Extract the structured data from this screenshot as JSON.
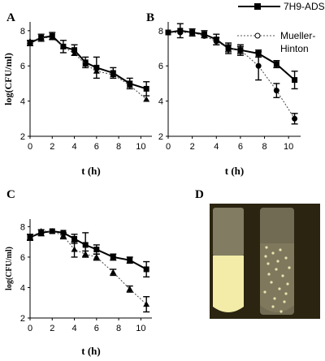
{
  "figure": {
    "panel_labels": [
      "A",
      "B",
      "C",
      "D"
    ],
    "legend": [
      {
        "label": "7H9-ADS",
        "style": "solid",
        "marker": "square-filled",
        "color": "#000000"
      },
      {
        "label": "Mueller-\nHinton",
        "style": "dotted",
        "marker": "circle-open",
        "color": "#555555"
      }
    ],
    "photo_panel": {
      "label": "D",
      "colors": {
        "background": "#2b2410",
        "broth": "#f2eca8",
        "glass": "#c9c4a6",
        "clear_tube": "#8a8466"
      }
    }
  },
  "chart_data": [
    {
      "panel": "A",
      "type": "line",
      "xlabel": "t (h)",
      "ylabel": "log(CFU/ml)",
      "xlim": [
        0,
        11
      ],
      "ylim": [
        2,
        8.5
      ],
      "xticks": [
        "0",
        "2",
        "4",
        "6",
        "8",
        "10"
      ],
      "yticks": [
        "2",
        "4",
        "6",
        "8"
      ],
      "series": [
        {
          "name": "7H9-ADS",
          "style": "solid",
          "marker": "square",
          "x": [
            0,
            1,
            2,
            3,
            4,
            5,
            6,
            7.5,
            9,
            10.5
          ],
          "y": [
            7.3,
            7.6,
            7.7,
            7.1,
            6.9,
            6.2,
            5.9,
            5.6,
            5.0,
            4.7
          ],
          "err": [
            0.15,
            0.2,
            0.2,
            0.35,
            0.3,
            0.3,
            0.6,
            0.3,
            0.3,
            0.4
          ]
        },
        {
          "name": "Mueller-Hinton",
          "style": "dotted",
          "marker": "triangle",
          "x": [
            0,
            1,
            2,
            3,
            4,
            5,
            6,
            7.5,
            9,
            10.5
          ],
          "y": [
            7.4,
            7.6,
            7.6,
            7.1,
            6.7,
            6.1,
            5.7,
            5.5,
            4.9,
            4.1
          ],
          "err": [
            0.1,
            0.1,
            0.1,
            0.1,
            0.1,
            0.1,
            0.1,
            0.1,
            0.1,
            0.1
          ]
        }
      ]
    },
    {
      "panel": "B",
      "type": "line",
      "xlabel": "t (h)",
      "ylabel": "",
      "xlim": [
        0,
        11
      ],
      "ylim": [
        2,
        8.5
      ],
      "xticks": [
        "0",
        "2",
        "4",
        "6",
        "8",
        "10"
      ],
      "yticks": [
        "2",
        "4",
        "6",
        "8"
      ],
      "series": [
        {
          "name": "7H9-ADS",
          "style": "solid",
          "marker": "square",
          "x": [
            0,
            1,
            2,
            3,
            4,
            5,
            6,
            7.5,
            9,
            10.5
          ],
          "y": [
            7.9,
            8.0,
            7.9,
            7.8,
            7.5,
            7.0,
            6.9,
            6.7,
            6.1,
            5.2
          ],
          "err": [
            0.1,
            0.4,
            0.2,
            0.2,
            0.3,
            0.3,
            0.3,
            0.2,
            0.2,
            0.5
          ]
        },
        {
          "name": "Mueller-Hinton",
          "style": "dotted",
          "marker": "circle",
          "x": [
            0,
            1,
            2,
            3,
            4,
            5,
            6,
            7.5,
            9,
            10.5
          ],
          "y": [
            7.9,
            7.9,
            7.9,
            7.7,
            7.4,
            7.0,
            6.9,
            6.0,
            4.6,
            3.0
          ],
          "err": [
            0.1,
            0.1,
            0.1,
            0.1,
            0.2,
            0.2,
            0.2,
            0.8,
            0.4,
            0.3
          ]
        }
      ]
    },
    {
      "panel": "C",
      "type": "line",
      "xlabel": "t (h)",
      "ylabel": "log(CFU/ml)",
      "xlim": [
        0,
        11
      ],
      "ylim": [
        2,
        8.5
      ],
      "xticks": [
        "0",
        "2",
        "4",
        "6",
        "8",
        "10"
      ],
      "yticks": [
        "2",
        "4",
        "6",
        "8"
      ],
      "series": [
        {
          "name": "7H9-ADS",
          "style": "solid",
          "marker": "square",
          "x": [
            0,
            1,
            2,
            3,
            4,
            5,
            6,
            7.5,
            9,
            10.5
          ],
          "y": [
            7.3,
            7.6,
            7.7,
            7.6,
            7.2,
            6.8,
            6.5,
            6.0,
            5.8,
            5.2
          ],
          "err": [
            0.2,
            0.2,
            0.1,
            0.1,
            0.3,
            0.8,
            0.3,
            0.2,
            0.2,
            0.5
          ]
        },
        {
          "name": "Mueller-Hinton",
          "style": "dotted",
          "marker": "triangle",
          "x": [
            0,
            1,
            2,
            3,
            4,
            5,
            6,
            7.5,
            9,
            10.5
          ],
          "y": [
            7.3,
            7.7,
            7.7,
            7.4,
            6.5,
            6.2,
            6.0,
            5.0,
            3.9,
            2.9
          ],
          "err": [
            0.1,
            0.1,
            0.1,
            0.2,
            0.5,
            0.2,
            0.2,
            0.2,
            0.2,
            0.5
          ]
        }
      ]
    }
  ]
}
